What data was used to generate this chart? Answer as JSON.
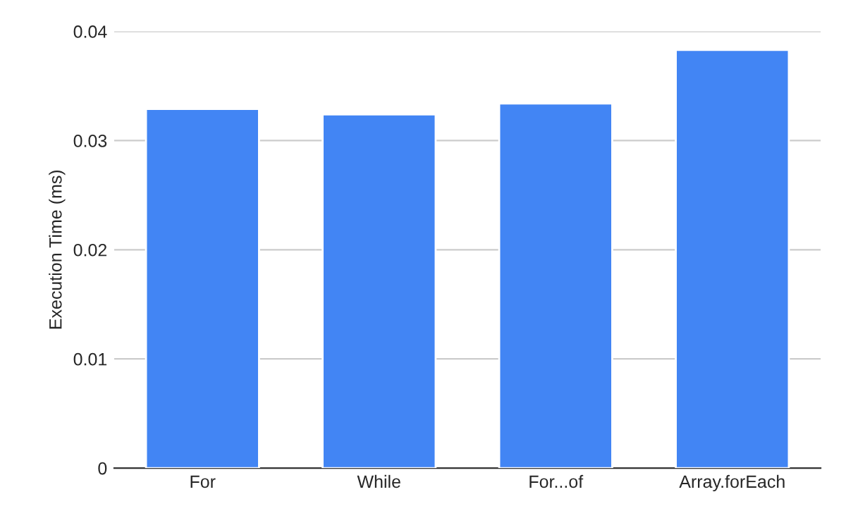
{
  "chart_data": {
    "type": "bar",
    "ylabel": "Execution Time (ms)",
    "categories": [
      "For",
      "While",
      "For...of",
      "Array.forEach"
    ],
    "values": [
      0.0329,
      0.0324,
      0.0334,
      0.0383
    ],
    "color": "#4285f4",
    "ylim": [
      0,
      0.04
    ],
    "yticks": [
      {
        "value": 0,
        "label": "0"
      },
      {
        "value": 0.01,
        "label": "0.01"
      },
      {
        "value": 0.02,
        "label": "0.02"
      },
      {
        "value": 0.03,
        "label": "0.03"
      },
      {
        "value": 0.04,
        "label": "0.04"
      }
    ],
    "grid": "y",
    "legend": false
  }
}
